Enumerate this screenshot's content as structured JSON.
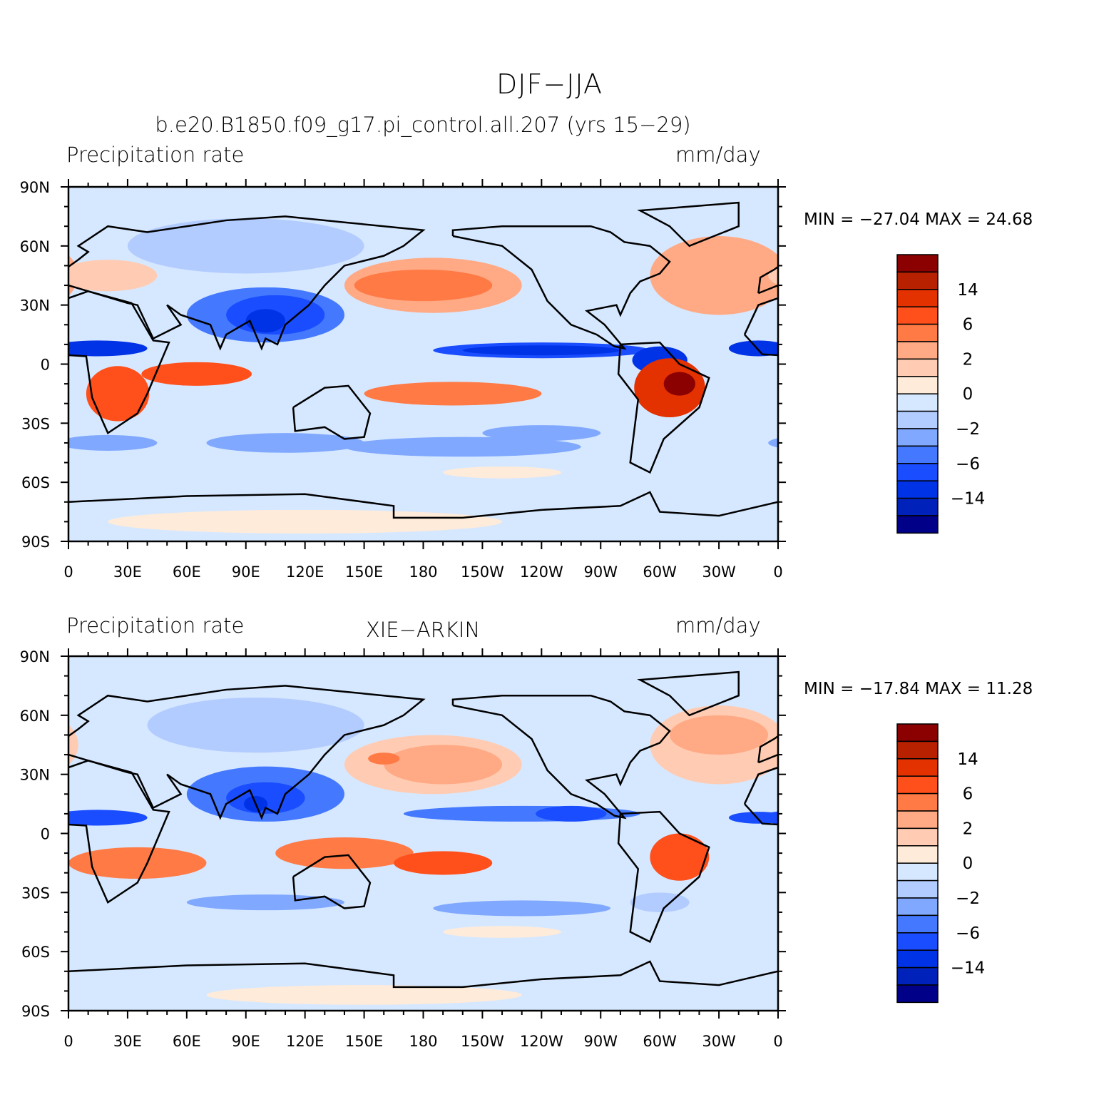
{
  "title": "DJF−JJA",
  "chart_data": {
    "type": "heatmap",
    "projection": "cylindrical-equidistant",
    "lon_ticks": [
      "0",
      "30E",
      "60E",
      "90E",
      "120E",
      "150E",
      "180",
      "150W",
      "120W",
      "90W",
      "60W",
      "30W",
      "0"
    ],
    "lat_ticks": [
      "90N",
      "60N",
      "30N",
      "0",
      "30S",
      "60S",
      "90S"
    ],
    "colorbar": {
      "colors": [
        "#8B0000",
        "#B82100",
        "#E33100",
        "#FF4F1A",
        "#FF7A45",
        "#FFAA85",
        "#FFCCB3",
        "#FFEBD9",
        "#D6E8FF",
        "#B3CCFF",
        "#80A8FF",
        "#4479FF",
        "#1A4DFF",
        "#0033E6",
        "#0022BB",
        "#000088"
      ],
      "labels": [
        "14",
        "6",
        "2",
        "0",
        "−2",
        "−6",
        "−14"
      ]
    },
    "panels": [
      {
        "left_title": "Precipitation rate",
        "center_title": "b.e20.B1850.f09_g17.pi_control.all.207 (yrs 15−29)",
        "right_title": "mm/day",
        "min_max": "MIN = −27.04  MAX =   24.68",
        "min": -27.04,
        "max": 24.68
      },
      {
        "left_title": "Precipitation rate",
        "center_title": "XIE−ARKIN",
        "right_title": "mm/day",
        "min_max": "MIN = −17.84  MAX =   11.28",
        "min": -17.84,
        "max": 11.28
      }
    ]
  }
}
